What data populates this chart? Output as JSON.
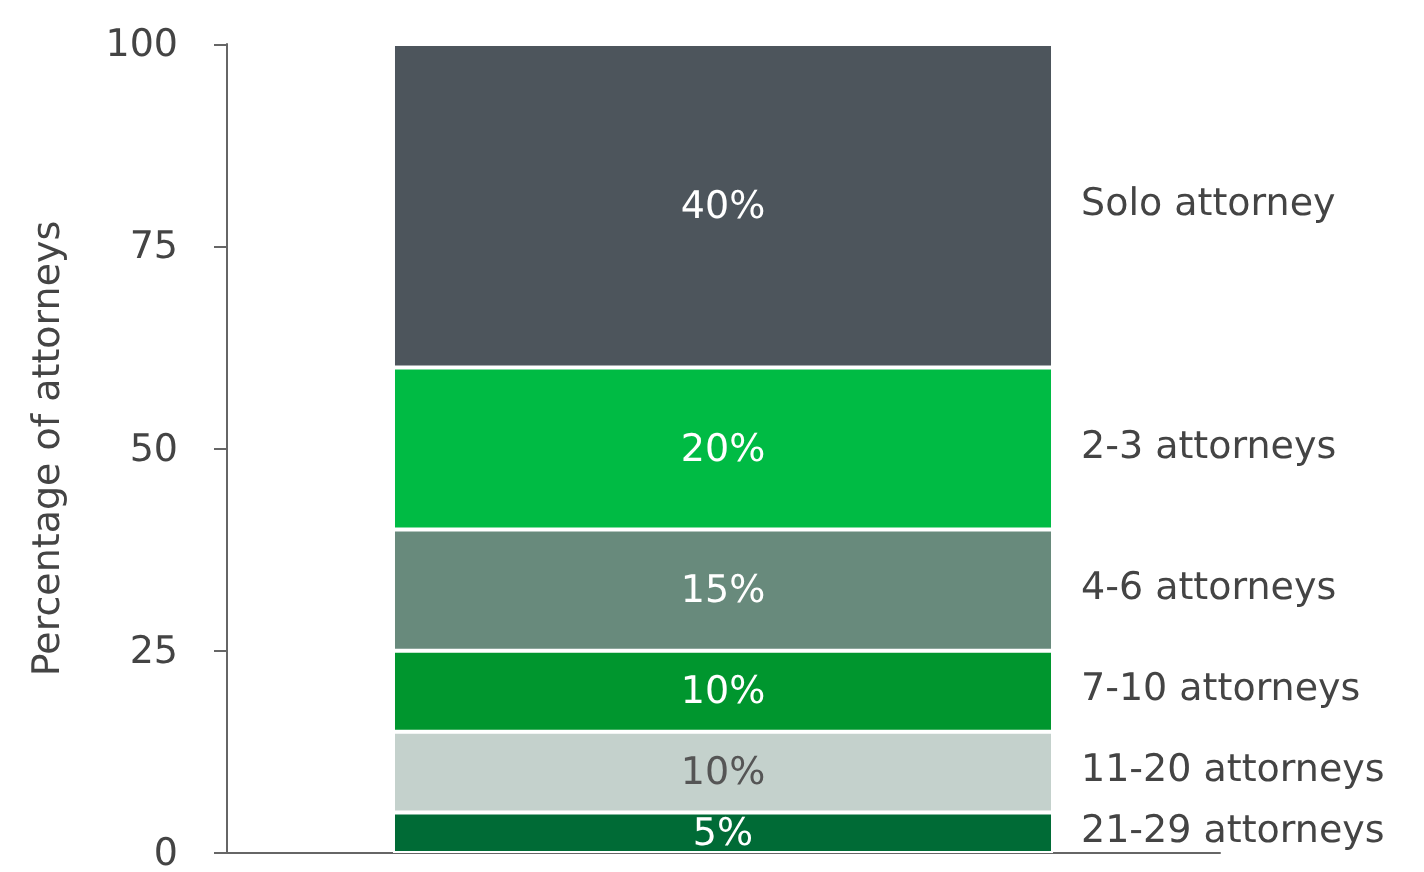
{
  "chart_data": {
    "type": "bar",
    "stacked": true,
    "ylabel": "Percentage of attorneys",
    "categories": [
      null
    ],
    "ylim": [
      0,
      100
    ],
    "yticks": [
      0,
      25,
      50,
      75,
      100
    ],
    "grid": false,
    "legend": false,
    "series": [
      {
        "name": "21-29 attorneys",
        "color": "#006b36",
        "values": [
          5
        ],
        "value_labels": [
          "5%"
        ]
      },
      {
        "name": "11-20 attorneys",
        "color": "#c4d1cc",
        "values": [
          10
        ],
        "value_labels": [
          "10%"
        ]
      },
      {
        "name": "7-10 attorneys",
        "color": "#00962e",
        "values": [
          10
        ],
        "value_labels": [
          "10%"
        ]
      },
      {
        "name": "4-6 attorneys",
        "color": "#688a7c",
        "values": [
          15
        ],
        "value_labels": [
          "15%"
        ]
      },
      {
        "name": "2-3 attorneys",
        "color": "#00bb44",
        "values": [
          20
        ],
        "value_labels": [
          "20%"
        ]
      },
      {
        "name": "Solo attorney",
        "color": "#4d555c",
        "values": [
          40
        ],
        "value_labels": [
          "40%"
        ]
      }
    ]
  }
}
